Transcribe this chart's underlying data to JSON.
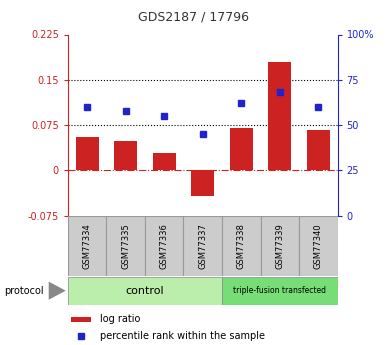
{
  "title": "GDS2187 / 17796",
  "samples": [
    "GSM77334",
    "GSM77335",
    "GSM77336",
    "GSM77337",
    "GSM77338",
    "GSM77339",
    "GSM77340"
  ],
  "log_ratios": [
    0.055,
    0.048,
    0.028,
    -0.042,
    0.07,
    0.18,
    0.067
  ],
  "percentile_ranks": [
    60,
    58,
    55,
    45,
    62,
    68,
    60
  ],
  "ylim_left": [
    -0.075,
    0.225
  ],
  "ylim_right": [
    0,
    100
  ],
  "yticks_left": [
    -0.075,
    0,
    0.075,
    0.15,
    0.225
  ],
  "yticks_right": [
    0,
    25,
    50,
    75,
    100
  ],
  "hline_dotted_1": 0.075,
  "hline_dotted_2": 0.15,
  "hline_zero": 0,
  "bar_color": "#cc2222",
  "dot_color": "#2222cc",
  "left_axis_color": "#cc2222",
  "right_axis_color": "#2222cc",
  "control_color": "#bbeeaa",
  "tf_color": "#77dd77",
  "sample_box_color": "#cccccc",
  "legend_bar_color": "#cc2222",
  "legend_dot_color": "#2222cc"
}
